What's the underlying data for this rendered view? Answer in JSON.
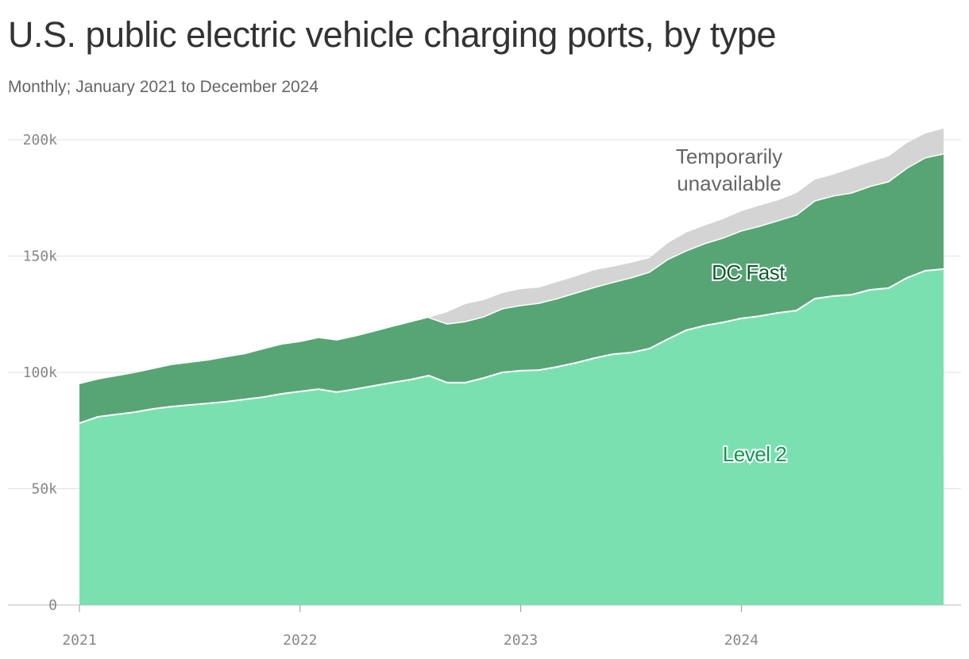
{
  "title": "U.S. public electric vehicle charging ports, by type",
  "subtitle": "Monthly; January 2021 to December 2024",
  "colors": {
    "level2": "#7be0b0",
    "dc_fast": "#57a574",
    "temporarily_unavailable": "#d4d4d4",
    "dc_fast_label": "#0d5b2c",
    "level2_label": "#0b9a4f",
    "tu_label": "#666666"
  },
  "chart_data": {
    "type": "area",
    "stacked": true,
    "title": "U.S. public electric vehicle charging ports, by type",
    "subtitle": "Monthly; January 2021 to December 2024",
    "xlabel": "",
    "ylabel": "",
    "ylim": [
      0,
      200000
    ],
    "grid": true,
    "legend": "inline labels",
    "x_start": "2021-01",
    "x_end": "2024-12",
    "x_ticks": [
      "2021",
      "2022",
      "2023",
      "2024"
    ],
    "y_ticks": [
      {
        "value": 0,
        "label": "0"
      },
      {
        "value": 50000,
        "label": "50k"
      },
      {
        "value": 100000,
        "label": "100k"
      },
      {
        "value": 150000,
        "label": "150k"
      },
      {
        "value": 200000,
        "label": "200k"
      }
    ],
    "series": [
      {
        "name": "Level 2",
        "values": [
          78200,
          80900,
          81900,
          82900,
          84300,
          85300,
          86000,
          86700,
          87400,
          88400,
          89400,
          90800,
          91800,
          92800,
          91500,
          92800,
          94200,
          95600,
          96900,
          98600,
          95600,
          95600,
          97600,
          100000,
          100700,
          101000,
          102400,
          104100,
          106100,
          107800,
          108500,
          110200,
          114300,
          118100,
          120100,
          121500,
          123200,
          124200,
          125600,
          126600,
          131700,
          132800,
          133400,
          135500,
          136200,
          140600,
          143700,
          144400
        ]
      },
      {
        "name": "DC Fast",
        "values": [
          16700,
          16000,
          16400,
          16800,
          17100,
          17800,
          18100,
          18400,
          19100,
          19400,
          20500,
          21100,
          21200,
          21900,
          22200,
          22600,
          23200,
          23900,
          24600,
          24900,
          25200,
          26200,
          26300,
          27300,
          28000,
          28700,
          29300,
          30000,
          30400,
          30800,
          32100,
          32800,
          34200,
          34100,
          35200,
          36200,
          37600,
          38600,
          39600,
          41000,
          42000,
          43000,
          43700,
          44400,
          45700,
          47100,
          48500,
          49500
        ]
      },
      {
        "name": "Temporarily unavailable",
        "label_lines": [
          "Temporarily",
          "unavailable"
        ],
        "values": [
          null,
          null,
          null,
          null,
          null,
          null,
          null,
          null,
          null,
          null,
          null,
          null,
          null,
          null,
          null,
          null,
          null,
          null,
          null,
          0,
          5100,
          7600,
          7200,
          6800,
          7100,
          6800,
          7200,
          7200,
          7500,
          6800,
          6500,
          6100,
          7100,
          7900,
          7800,
          8200,
          8500,
          8900,
          8800,
          9500,
          9200,
          9200,
          10600,
          10500,
          10900,
          10900,
          10500,
          10900
        ]
      }
    ]
  }
}
